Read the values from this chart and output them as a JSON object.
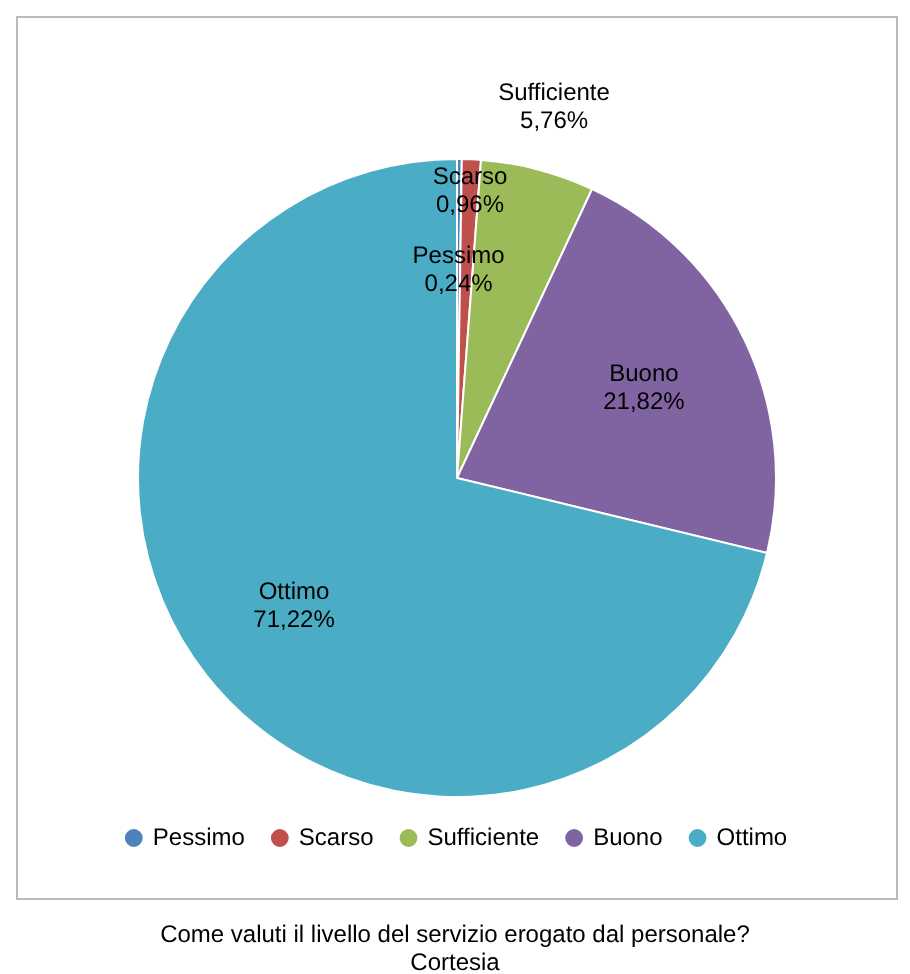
{
  "chart_data": {
    "type": "pie",
    "title": "Come valuti il livello del servizio erogato dal personale? Cortesia",
    "categories": [
      "Pessimo",
      "Scarso",
      "Sufficiente",
      "Buono",
      "Ottimo"
    ],
    "values": [
      0.24,
      0.96,
      5.76,
      21.82,
      71.22
    ],
    "colors": [
      "#4f81bd",
      "#c0504d",
      "#9bbb59",
      "#8064a2",
      "#4bacc6"
    ],
    "value_labels": [
      "0,24%",
      "0,96%",
      "5,76%",
      "21,82%",
      "71,22%"
    ],
    "legend": "bottom"
  }
}
